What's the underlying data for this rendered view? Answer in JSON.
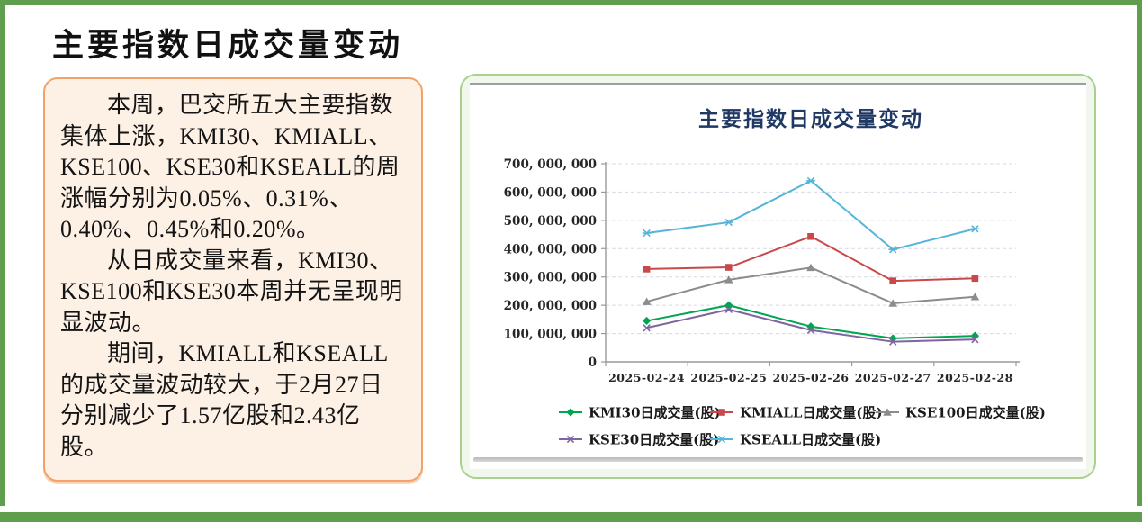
{
  "page": {
    "title": "主要指数日成交量变动",
    "border_color": "#5f9e4c",
    "accent_orange": "#f2a269"
  },
  "summary_box": {
    "paragraphs": [
      "本周，巴交所五大主要指数集体上涨，KMI30、KMIALL、KSE100、KSE30和KSEALL的周涨幅分别为0.05%、0.31%、0.40%、0.45%和0.20%。",
      "从日成交量来看，KMI30、KSE100和KSE30本周并无呈现明显波动。",
      "期间，KMIALL和KSEALL的成交量波动较大，于2月27日分别减少了1.57亿股和2.43亿股。"
    ]
  },
  "chart_data": {
    "type": "line",
    "title": "主要指数日成交量变动",
    "title_color": "#1f3864",
    "categories": [
      "2025-02-24",
      "2025-02-25",
      "2025-02-26",
      "2025-02-27",
      "2025-02-28"
    ],
    "series": [
      {
        "name": "KMI30日成交量(股)",
        "color": "#00a550",
        "marker": "diamond",
        "values": [
          145000000,
          200000000,
          125000000,
          83000000,
          92000000
        ]
      },
      {
        "name": "KMIALL日成交量(股)",
        "color": "#c9484a",
        "marker": "square",
        "values": [
          328000000,
          334000000,
          443000000,
          286000000,
          295000000
        ]
      },
      {
        "name": "KSE100日成交量(股)",
        "color": "#8c8c8c",
        "marker": "triangle",
        "values": [
          213000000,
          290000000,
          333000000,
          207000000,
          230000000
        ]
      },
      {
        "name": "KSE30日成交量(股)",
        "color": "#8064a2",
        "marker": "x",
        "values": [
          120000000,
          185000000,
          112000000,
          71000000,
          79000000
        ]
      },
      {
        "name": "KSEALL日成交量(股)",
        "color": "#55b5d9",
        "marker": "x-dash",
        "values": [
          455000000,
          493000000,
          640000000,
          397000000,
          470000000
        ]
      }
    ],
    "ylim": [
      0,
      700000000
    ],
    "ytick_step": 100000000,
    "ytick_labels": [
      "0",
      "100, 000, 000",
      "200, 000, 000",
      "300, 000, 000",
      "400, 000, 000",
      "500, 000, 000",
      "600, 000, 000",
      "700, 000, 000"
    ],
    "grid": "horizontal-dashed",
    "grid_color": "#d9d9e6",
    "axis_color": "#9a9a9a",
    "legend_position": "bottom",
    "legend_rows": [
      [
        0,
        1,
        2
      ],
      [
        3,
        4
      ]
    ]
  }
}
